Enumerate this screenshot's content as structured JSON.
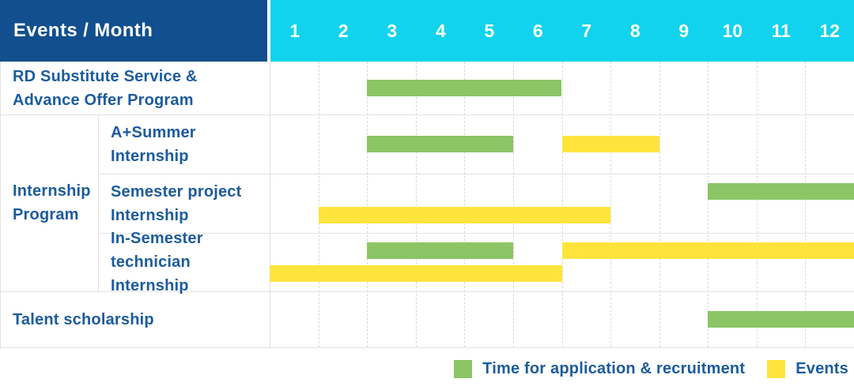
{
  "header": {
    "title": "Events / Month",
    "months": [
      "1",
      "2",
      "3",
      "4",
      "5",
      "6",
      "7",
      "8",
      "9",
      "10",
      "11",
      "12"
    ]
  },
  "colors": {
    "header_bg": "#114f8e",
    "months_bg": "#12d3ee",
    "label_text": "#1c5b9d",
    "green": "#8bc566",
    "yellow": "#ffe43e",
    "grid_solid": "#e2e2e2",
    "grid_dash": "#d9d9d9"
  },
  "group": {
    "name": "internship-program",
    "label_lines": [
      "Internship",
      "Program"
    ]
  },
  "rows": [
    {
      "name": "rd-substitute-service",
      "label_lines": [
        "RD Substitute Service &",
        "Advance Offer Program"
      ],
      "sub": false,
      "bars": [
        {
          "color": "green",
          "start": 3,
          "end": 6,
          "lane": "center"
        }
      ]
    },
    {
      "name": "a-plus-summer-internship",
      "label_lines": [
        "A+Summer",
        "Internship"
      ],
      "sub": true,
      "bars": [
        {
          "color": "green",
          "start": 3,
          "end": 5,
          "lane": "center"
        },
        {
          "color": "yellow",
          "start": 7,
          "end": 8,
          "lane": "center"
        }
      ]
    },
    {
      "name": "semester-project-internship",
      "label_lines": [
        "Semester project",
        "Internship"
      ],
      "sub": true,
      "bars": [
        {
          "color": "green",
          "start": 10,
          "end": 12,
          "lane": "top"
        },
        {
          "color": "yellow",
          "start": 2,
          "end": 7,
          "lane": "bottom"
        }
      ]
    },
    {
      "name": "in-semester-technician-internship",
      "label_lines": [
        "In-Semester",
        "technician Internship"
      ],
      "sub": true,
      "bars": [
        {
          "color": "green",
          "start": 3,
          "end": 5,
          "lane": "top"
        },
        {
          "color": "yellow",
          "start": 7,
          "end": 12,
          "lane": "top"
        },
        {
          "color": "yellow",
          "start": 1,
          "end": 6,
          "lane": "bottom"
        }
      ]
    },
    {
      "name": "talent-scholarship",
      "label_lines": [
        "Talent scholarship"
      ],
      "sub": false,
      "bars": [
        {
          "color": "green",
          "start": 10,
          "end": 12,
          "lane": "center"
        }
      ]
    }
  ],
  "legend": [
    {
      "name": "legend-application-recruitment",
      "color": "green",
      "label": "Time for application & recruitment"
    },
    {
      "name": "legend-events",
      "color": "yellow",
      "label": "Events"
    }
  ],
  "chart_data": {
    "type": "bar",
    "subtype": "gantt",
    "title": "Events / Month",
    "xlabel": "Month",
    "x_ticks": [
      1,
      2,
      3,
      4,
      5,
      6,
      7,
      8,
      9,
      10,
      11,
      12
    ],
    "xlim": [
      1,
      12
    ],
    "grid": true,
    "legend_position": "bottom-right",
    "legend": {
      "green": "Time for application & recruitment",
      "yellow": "Events"
    },
    "tasks": [
      {
        "row": "RD Substitute Service & Advance Offer Program",
        "group": null,
        "category": "Time for application & recruitment",
        "color": "green",
        "start_month": 3,
        "end_month": 6
      },
      {
        "row": "A+Summer Internship",
        "group": "Internship Program",
        "category": "Time for application & recruitment",
        "color": "green",
        "start_month": 3,
        "end_month": 5
      },
      {
        "row": "A+Summer Internship",
        "group": "Internship Program",
        "category": "Events",
        "color": "yellow",
        "start_month": 7,
        "end_month": 8
      },
      {
        "row": "Semester project Internship",
        "group": "Internship Program",
        "category": "Time for application & recruitment",
        "color": "green",
        "start_month": 10,
        "end_month": 12
      },
      {
        "row": "Semester project Internship",
        "group": "Internship Program",
        "category": "Events",
        "color": "yellow",
        "start_month": 2,
        "end_month": 7
      },
      {
        "row": "In-Semester technician Internship",
        "group": "Internship Program",
        "category": "Time for application & recruitment",
        "color": "green",
        "start_month": 3,
        "end_month": 5
      },
      {
        "row": "In-Semester technician Internship",
        "group": "Internship Program",
        "category": "Events",
        "color": "yellow",
        "start_month": 7,
        "end_month": 12
      },
      {
        "row": "In-Semester technician Internship",
        "group": "Internship Program",
        "category": "Events",
        "color": "yellow",
        "start_month": 1,
        "end_month": 6
      },
      {
        "row": "Talent scholarship",
        "group": null,
        "category": "Time for application & recruitment",
        "color": "green",
        "start_month": 10,
        "end_month": 12
      }
    ]
  }
}
